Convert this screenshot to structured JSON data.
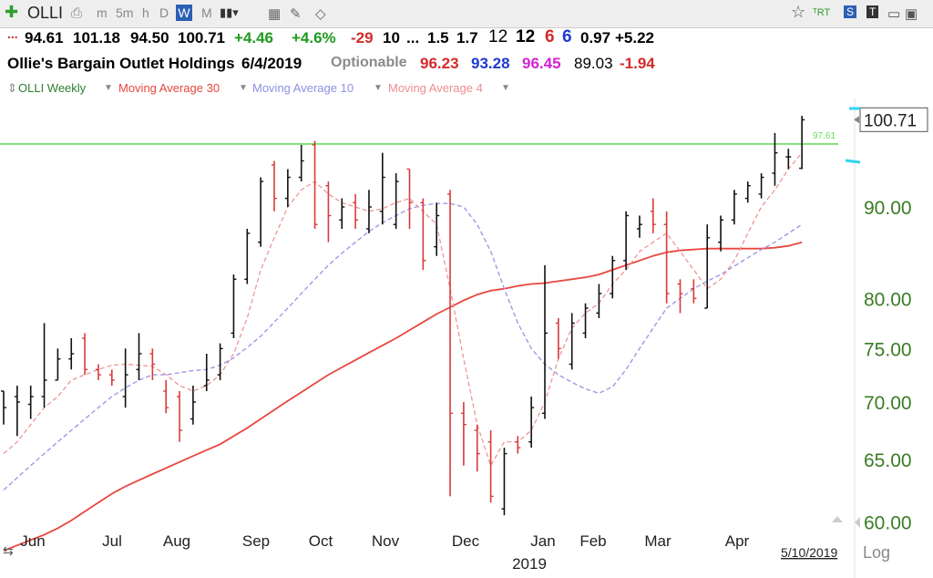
{
  "toolbar": {
    "ticker": "OLLI",
    "items": [
      "m",
      "5m",
      "h",
      "D",
      "W",
      "M"
    ],
    "selected": "W",
    "badges": [
      "S",
      "T"
    ]
  },
  "quote": {
    "open": "94.61",
    "high": "101.18",
    "low": "94.50",
    "close": "100.71",
    "change": "+4.46",
    "change_pct": "+4.6%",
    "f1": "-29",
    "f2": "10",
    "f3": "...",
    "f4": "1.5",
    "f5": "1.7",
    "f6": "12",
    "f7": "12",
    "f8": "6",
    "f9": "6",
    "f10": "0.97",
    "f11": "+5.22"
  },
  "company": {
    "name": "Ollie's Bargain Outlet Holdings",
    "date": "6/4/2019",
    "optionable": "Optionable",
    "v1": "96.23",
    "v2": "93.28",
    "v3": "96.45",
    "v4": "89.03",
    "v5": "-1.94"
  },
  "legend": {
    "symbol": "OLLI Weekly",
    "ma30": "Moving Average 30",
    "ma10": "Moving Average 10",
    "ma4": "Moving Average 4"
  },
  "colors": {
    "up": "#111111",
    "down": "#d93a3a",
    "ma30": "#e8473f",
    "ma10": "#9b9be8",
    "ma4": "#ee8e8e",
    "line": "#66e05a",
    "axis_text": "#3a7d24",
    "green": "#1f9b1f",
    "blue": "#1e3ad1",
    "magenta": "#d323d3",
    "red": "#d42a2a"
  },
  "chart_data": {
    "type": "ohlc",
    "scale": "log",
    "ylim": [
      59.6,
      103.5
    ],
    "yticks": [
      "90.00",
      "80.00",
      "75.00",
      "70.00",
      "65.00",
      "60.00"
    ],
    "x_labels": [
      "Jun",
      "Jul",
      "Aug",
      "Sep",
      "Oct",
      "Nov",
      "Dec",
      "Jan",
      "Feb",
      "Mar",
      "Apr"
    ],
    "year_label": "2019",
    "scale_label": "Log",
    "last_price": "100.71",
    "hline_value": 97.61,
    "hline_label": "97.61",
    "date_marker": "5/10/2019",
    "series": [
      {
        "d": 1,
        "o": 71.0,
        "h": 71.0,
        "l": 68.0,
        "c": 69.5
      },
      {
        "d": 1,
        "o": 70.5,
        "h": 71.5,
        "l": 67.0,
        "c": 70.0
      },
      {
        "d": 1,
        "o": 69.8,
        "h": 71.5,
        "l": 68.5,
        "c": 70.5
      },
      {
        "d": 1,
        "o": 70.5,
        "h": 77.5,
        "l": 69.5,
        "c": 72.0
      },
      {
        "d": 1,
        "o": 72.0,
        "h": 75.0,
        "l": 72.0,
        "c": 74.0
      },
      {
        "d": 1,
        "o": 74.0,
        "h": 76.0,
        "l": 73.0,
        "c": 74.5
      },
      {
        "d": 0,
        "o": 76.0,
        "h": 76.5,
        "l": 72.5,
        "c": 73.0
      },
      {
        "d": 0,
        "o": 73.0,
        "h": 73.5,
        "l": 72.0,
        "c": 72.5
      },
      {
        "d": 0,
        "o": 72.5,
        "h": 73.0,
        "l": 71.5,
        "c": 72.0
      },
      {
        "d": 1,
        "o": 70.5,
        "h": 75.0,
        "l": 69.5,
        "c": 72.5
      },
      {
        "d": 1,
        "o": 73.0,
        "h": 76.5,
        "l": 72.0,
        "c": 74.5
      },
      {
        "d": 0,
        "o": 74.5,
        "h": 75.0,
        "l": 72.0,
        "c": 73.5
      },
      {
        "d": 0,
        "o": 71.0,
        "h": 72.0,
        "l": 69.0,
        "c": 69.5
      },
      {
        "d": 0,
        "o": 70.5,
        "h": 71.0,
        "l": 66.5,
        "c": 67.5
      },
      {
        "d": 1,
        "o": 68.5,
        "h": 71.5,
        "l": 68.0,
        "c": 70.0
      },
      {
        "d": 1,
        "o": 71.5,
        "h": 74.5,
        "l": 71.0,
        "c": 72.0
      },
      {
        "d": 1,
        "o": 72.5,
        "h": 75.5,
        "l": 72.0,
        "c": 75.0
      },
      {
        "d": 1,
        "o": 76.5,
        "h": 82.5,
        "l": 76.0,
        "c": 82.0
      },
      {
        "d": 1,
        "o": 82.0,
        "h": 87.5,
        "l": 81.5,
        "c": 87.0
      },
      {
        "d": 1,
        "o": 86.0,
        "h": 93.5,
        "l": 85.5,
        "c": 93.0
      },
      {
        "d": 0,
        "o": 95.0,
        "h": 95.5,
        "l": 89.5,
        "c": 91.0
      },
      {
        "d": 1,
        "o": 91.0,
        "h": 94.5,
        "l": 90.0,
        "c": 93.5
      },
      {
        "d": 1,
        "o": 93.5,
        "h": 97.5,
        "l": 93.0,
        "c": 95.5
      },
      {
        "d": 0,
        "o": 97.5,
        "h": 98.0,
        "l": 87.5,
        "c": 88.0
      },
      {
        "d": 0,
        "o": 92.5,
        "h": 93.0,
        "l": 86.0,
        "c": 89.0
      },
      {
        "d": 1,
        "o": 88.5,
        "h": 91.0,
        "l": 87.5,
        "c": 90.0
      },
      {
        "d": 0,
        "o": 90.5,
        "h": 91.5,
        "l": 87.5,
        "c": 88.5
      },
      {
        "d": 1,
        "o": 87.5,
        "h": 92.0,
        "l": 87.0,
        "c": 90.0
      },
      {
        "d": 1,
        "o": 89.5,
        "h": 96.5,
        "l": 88.0,
        "c": 93.5
      },
      {
        "d": 1,
        "o": 88.0,
        "h": 94.0,
        "l": 87.5,
        "c": 93.0
      },
      {
        "d": 0,
        "o": 94.5,
        "h": 94.5,
        "l": 87.5,
        "c": 90.5
      },
      {
        "d": 0,
        "o": 90.5,
        "h": 91.0,
        "l": 83.0,
        "c": 84.0
      },
      {
        "d": 1,
        "o": 85.5,
        "h": 90.5,
        "l": 84.5,
        "c": 89.0
      },
      {
        "d": 0,
        "o": 91.5,
        "h": 92.0,
        "l": 62.0,
        "c": 69.0
      },
      {
        "d": 0,
        "o": 69.0,
        "h": 70.0,
        "l": 64.5,
        "c": 68.0
      },
      {
        "d": 0,
        "o": 67.5,
        "h": 68.0,
        "l": 64.0,
        "c": 65.5
      },
      {
        "d": 0,
        "o": 66.5,
        "h": 67.5,
        "l": 61.5,
        "c": 62.0
      },
      {
        "d": 1,
        "o": 61.0,
        "h": 66.0,
        "l": 60.5,
        "c": 65.5
      },
      {
        "d": 0,
        "o": 66.5,
        "h": 67.0,
        "l": 65.5,
        "c": 66.0
      },
      {
        "d": 1,
        "o": 66.5,
        "h": 70.5,
        "l": 66.0,
        "c": 69.5
      },
      {
        "d": 1,
        "o": 69.0,
        "h": 83.5,
        "l": 68.5,
        "c": 76.5
      },
      {
        "d": 0,
        "o": 77.5,
        "h": 78.0,
        "l": 74.0,
        "c": 75.0
      },
      {
        "d": 1,
        "o": 73.5,
        "h": 78.5,
        "l": 73.0,
        "c": 77.5
      },
      {
        "d": 1,
        "o": 76.5,
        "h": 79.5,
        "l": 76.0,
        "c": 79.0
      },
      {
        "d": 1,
        "o": 78.5,
        "h": 81.5,
        "l": 78.0,
        "c": 80.5
      },
      {
        "d": 1,
        "o": 80.5,
        "h": 84.5,
        "l": 80.0,
        "c": 84.0
      },
      {
        "d": 1,
        "o": 84.0,
        "h": 89.5,
        "l": 83.0,
        "c": 89.0
      },
      {
        "d": 1,
        "o": 87.5,
        "h": 89.0,
        "l": 86.5,
        "c": 88.0
      },
      {
        "d": 0,
        "o": 89.5,
        "h": 91.0,
        "l": 87.0,
        "c": 88.0
      },
      {
        "d": 0,
        "o": 88.0,
        "h": 89.5,
        "l": 79.5,
        "c": 80.5
      },
      {
        "d": 0,
        "o": 81.5,
        "h": 82.0,
        "l": 78.5,
        "c": 80.5
      },
      {
        "d": 0,
        "o": 81.0,
        "h": 82.0,
        "l": 79.5,
        "c": 80.0
      },
      {
        "d": 1,
        "o": 79.0,
        "h": 88.0,
        "l": 79.0,
        "c": 86.5
      },
      {
        "d": 1,
        "o": 86.0,
        "h": 89.0,
        "l": 85.0,
        "c": 88.5
      },
      {
        "d": 1,
        "o": 88.5,
        "h": 92.0,
        "l": 88.0,
        "c": 91.5
      },
      {
        "d": 1,
        "o": 91.0,
        "h": 93.0,
        "l": 90.5,
        "c": 92.5
      },
      {
        "d": 1,
        "o": 91.5,
        "h": 94.0,
        "l": 91.0,
        "c": 93.5
      },
      {
        "d": 1,
        "o": 94.0,
        "h": 99.0,
        "l": 92.5,
        "c": 96.5
      },
      {
        "d": 1,
        "o": 96.0,
        "h": 97.0,
        "l": 94.5,
        "c": 96.0
      },
      {
        "d": 1,
        "o": 94.6,
        "h": 101.2,
        "l": 94.5,
        "c": 100.7
      }
    ],
    "ma30": [
      57.8,
      58.2,
      58.6,
      59.0,
      59.5,
      60.1,
      60.8,
      61.5,
      62.2,
      62.8,
      63.3,
      63.8,
      64.3,
      64.8,
      65.3,
      65.8,
      66.3,
      67.0,
      67.7,
      68.5,
      69.3,
      70.1,
      70.9,
      71.7,
      72.5,
      73.2,
      73.9,
      74.6,
      75.3,
      76.0,
      76.8,
      77.6,
      78.4,
      79.1,
      79.8,
      80.4,
      80.8,
      81.0,
      81.3,
      81.5,
      81.6,
      81.8,
      82.0,
      82.2,
      82.5,
      83.0,
      83.5,
      84.0,
      84.5,
      84.9,
      85.1,
      85.2,
      85.3,
      85.3,
      85.3,
      85.3,
      85.3,
      85.4,
      85.6,
      86.0
    ],
    "ma10": [
      62.5,
      63.5,
      64.5,
      65.5,
      66.5,
      67.5,
      68.5,
      69.5,
      70.5,
      71.3,
      72.0,
      72.5,
      72.5,
      72.7,
      72.9,
      73.0,
      73.4,
      74.1,
      75.1,
      76.2,
      77.6,
      79.0,
      80.5,
      82.0,
      83.5,
      84.8,
      86.0,
      87.2,
      88.2,
      89.0,
      89.8,
      90.2,
      90.4,
      90.4,
      90.0,
      88.0,
      85.0,
      81.0,
      77.5,
      75.0,
      73.5,
      72.5,
      71.8,
      71.2,
      70.8,
      71.4,
      73.0,
      75.0,
      77.0,
      79.0,
      80.0,
      81.0,
      81.8,
      82.5,
      83.4,
      84.3,
      85.2,
      86.0,
      87.0,
      88.0
    ],
    "ma4": [
      65.5,
      66.5,
      68.0,
      69.5,
      70.5,
      72.0,
      72.5,
      73.0,
      73.4,
      73.5,
      73.4,
      73.3,
      72.5,
      71.5,
      71.0,
      71.5,
      72.5,
      74.5,
      78.0,
      83.0,
      86.5,
      90.0,
      92.0,
      93.0,
      91.5,
      90.5,
      90.0,
      89.5,
      89.8,
      90.5,
      91.0,
      89.5,
      88.0,
      81.0,
      74.0,
      68.0,
      64.5,
      66.5,
      66.5,
      67.5,
      70.0,
      74.0,
      77.0,
      78.5,
      79.5,
      81.5,
      83.0,
      85.0,
      86.0,
      87.0,
      85.0,
      83.0,
      81.0,
      82.0,
      84.0,
      87.0,
      90.0,
      92.0,
      94.5,
      96.5
    ]
  }
}
